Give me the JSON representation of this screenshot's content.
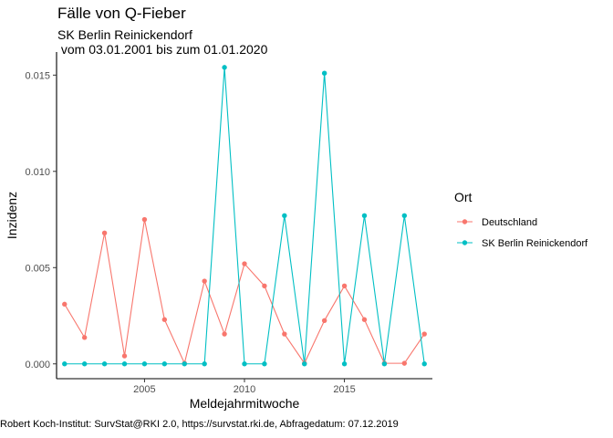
{
  "chart_data": {
    "type": "line",
    "title": "Fälle von Q-Fieber",
    "subtitle": "SK Berlin Reinickendorf\n vom 03.01.2001 bis zum 01.01.2020",
    "xlabel": "Meldejahrmitwoche",
    "ylabel": "Inzidenz",
    "caption": "Robert Koch-Institut: SurvStat@RKI 2.0, https://survstat.rki.de, Abfragedatum: 07.12.2019",
    "xlim": [
      2000.6,
      2019.4
    ],
    "ylim": [
      -0.00077,
      0.0162
    ],
    "x_ticks": [
      2005,
      2010,
      2015
    ],
    "x_tick_labels": [
      "2005",
      "2010",
      "2015"
    ],
    "y_ticks": [
      0,
      0.005,
      0.01,
      0.015
    ],
    "y_tick_labels": [
      "0.000",
      "0.005",
      "0.010",
      "0.015"
    ],
    "grid": false,
    "legend": {
      "title": "Ort",
      "position": "right"
    },
    "x": [
      2001,
      2002,
      2003,
      2004,
      2005,
      2006,
      2007,
      2008,
      2009,
      2010,
      2011,
      2012,
      2013,
      2014,
      2015,
      2016,
      2017,
      2018,
      2019
    ],
    "series": [
      {
        "name": "Deutschland",
        "color": "#F8766D",
        "values": [
          0.0031,
          0.00137,
          0.0068,
          0.00041,
          0.0075,
          0.0023,
          3e-05,
          0.0043,
          0.00155,
          0.0052,
          0.00405,
          0.00155,
          3e-05,
          0.00225,
          0.00405,
          0.0023,
          3e-05,
          3e-05,
          0.00155
        ]
      },
      {
        "name": "SK Berlin Reinickendorf",
        "color": "#00BFC4",
        "values": [
          0,
          0,
          0,
          0,
          0,
          0,
          0,
          0,
          0.0154,
          0,
          0,
          0.0077,
          0,
          0.0151,
          0,
          0.0077,
          0,
          0.0077,
          0
        ]
      }
    ]
  }
}
